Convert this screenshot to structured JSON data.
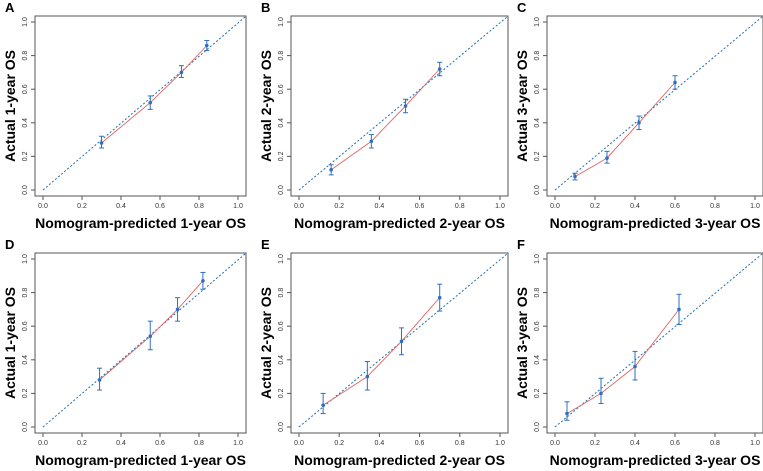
{
  "figure": {
    "reference_line_color": "#1f6fb2",
    "calibration_line_color": "#e06666",
    "point_color": "#2f6fc0"
  },
  "chart_data": [
    {
      "panel": "A",
      "type": "scatter",
      "xlabel": "Nomogram-predicted 1-year OS",
      "ylabel": "Actual 1-year OS",
      "xlim": [
        0,
        1
      ],
      "ylim": [
        0,
        1
      ],
      "xticks": [
        "0.0",
        "0.2",
        "0.4",
        "0.6",
        "0.8",
        "1.0"
      ],
      "yticks": [
        "0.0",
        "0.2",
        "0.4",
        "0.6",
        "0.8",
        "1.0"
      ],
      "reference_line": "diagonal",
      "points": [
        {
          "x": 0.3,
          "y": 0.28,
          "lo": 0.25,
          "hi": 0.32
        },
        {
          "x": 0.55,
          "y": 0.52,
          "lo": 0.48,
          "hi": 0.56
        },
        {
          "x": 0.71,
          "y": 0.7,
          "lo": 0.67,
          "hi": 0.74
        },
        {
          "x": 0.84,
          "y": 0.86,
          "lo": 0.83,
          "hi": 0.89
        }
      ]
    },
    {
      "panel": "B",
      "type": "scatter",
      "xlabel": "Nomogram-predicted 2-year OS",
      "ylabel": "Actual 2-year OS",
      "xlim": [
        0,
        1
      ],
      "ylim": [
        0,
        1
      ],
      "xticks": [
        "0.0",
        "0.2",
        "0.4",
        "0.6",
        "0.8",
        "1.0"
      ],
      "yticks": [
        "0.0",
        "0.2",
        "0.4",
        "0.6",
        "0.8",
        "1.0"
      ],
      "reference_line": "diagonal",
      "points": [
        {
          "x": 0.16,
          "y": 0.12,
          "lo": 0.09,
          "hi": 0.15
        },
        {
          "x": 0.36,
          "y": 0.29,
          "lo": 0.25,
          "hi": 0.33
        },
        {
          "x": 0.53,
          "y": 0.5,
          "lo": 0.46,
          "hi": 0.54
        },
        {
          "x": 0.7,
          "y": 0.72,
          "lo": 0.68,
          "hi": 0.76
        }
      ]
    },
    {
      "panel": "C",
      "type": "scatter",
      "xlabel": "Nomogram-predicted 3-year OS",
      "ylabel": "Actual 3-year OS",
      "xlim": [
        0,
        1
      ],
      "ylim": [
        0,
        1
      ],
      "xticks": [
        "0.0",
        "0.2",
        "0.4",
        "0.6",
        "0.8",
        "1.0"
      ],
      "yticks": [
        "0.0",
        "0.2",
        "0.4",
        "0.6",
        "0.8",
        "1.0"
      ],
      "reference_line": "diagonal",
      "points": [
        {
          "x": 0.1,
          "y": 0.08,
          "lo": 0.06,
          "hi": 0.1
        },
        {
          "x": 0.26,
          "y": 0.19,
          "lo": 0.16,
          "hi": 0.23
        },
        {
          "x": 0.42,
          "y": 0.4,
          "lo": 0.36,
          "hi": 0.44
        },
        {
          "x": 0.6,
          "y": 0.64,
          "lo": 0.6,
          "hi": 0.68
        }
      ]
    },
    {
      "panel": "D",
      "type": "scatter",
      "xlabel": "Nomogram-predicted 1-year OS",
      "ylabel": "Actual 1-year OS",
      "xlim": [
        0,
        1
      ],
      "ylim": [
        0,
        1
      ],
      "xticks": [
        "0.0",
        "0.2",
        "0.4",
        "0.6",
        "0.8",
        "1.0"
      ],
      "yticks": [
        "0.0",
        "0.2",
        "0.4",
        "0.6",
        "0.8",
        "1.0"
      ],
      "reference_line": "diagonal",
      "points": [
        {
          "x": 0.29,
          "y": 0.28,
          "lo": 0.22,
          "hi": 0.35
        },
        {
          "x": 0.55,
          "y": 0.54,
          "lo": 0.46,
          "hi": 0.63
        },
        {
          "x": 0.69,
          "y": 0.7,
          "lo": 0.63,
          "hi": 0.77
        },
        {
          "x": 0.82,
          "y": 0.87,
          "lo": 0.82,
          "hi": 0.92
        }
      ]
    },
    {
      "panel": "E",
      "type": "scatter",
      "xlabel": "Nomogram-predicted 2-year OS",
      "ylabel": "Actual 2-year OS",
      "xlim": [
        0,
        1
      ],
      "ylim": [
        0,
        1
      ],
      "xticks": [
        "0.0",
        "0.2",
        "0.4",
        "0.6",
        "0.8",
        "1.0"
      ],
      "yticks": [
        "0.0",
        "0.2",
        "0.4",
        "0.6",
        "0.8",
        "1.0"
      ],
      "reference_line": "diagonal",
      "points": [
        {
          "x": 0.12,
          "y": 0.13,
          "lo": 0.08,
          "hi": 0.2
        },
        {
          "x": 0.34,
          "y": 0.3,
          "lo": 0.22,
          "hi": 0.39
        },
        {
          "x": 0.51,
          "y": 0.51,
          "lo": 0.43,
          "hi": 0.59
        },
        {
          "x": 0.7,
          "y": 0.77,
          "lo": 0.69,
          "hi": 0.85
        }
      ]
    },
    {
      "panel": "F",
      "type": "scatter",
      "xlabel": "Nomogram-predicted 3-year OS",
      "ylabel": "Actual 3-year OS",
      "xlim": [
        0,
        1
      ],
      "ylim": [
        0,
        1
      ],
      "xticks": [
        "0.0",
        "0.2",
        "0.4",
        "0.6",
        "0.8",
        "1.0"
      ],
      "yticks": [
        "0.0",
        "0.2",
        "0.4",
        "0.6",
        "0.8",
        "1.0"
      ],
      "reference_line": "diagonal",
      "points": [
        {
          "x": 0.06,
          "y": 0.08,
          "lo": 0.04,
          "hi": 0.15
        },
        {
          "x": 0.23,
          "y": 0.2,
          "lo": 0.14,
          "hi": 0.29
        },
        {
          "x": 0.4,
          "y": 0.36,
          "lo": 0.28,
          "hi": 0.45
        },
        {
          "x": 0.62,
          "y": 0.7,
          "lo": 0.61,
          "hi": 0.79
        }
      ]
    }
  ]
}
